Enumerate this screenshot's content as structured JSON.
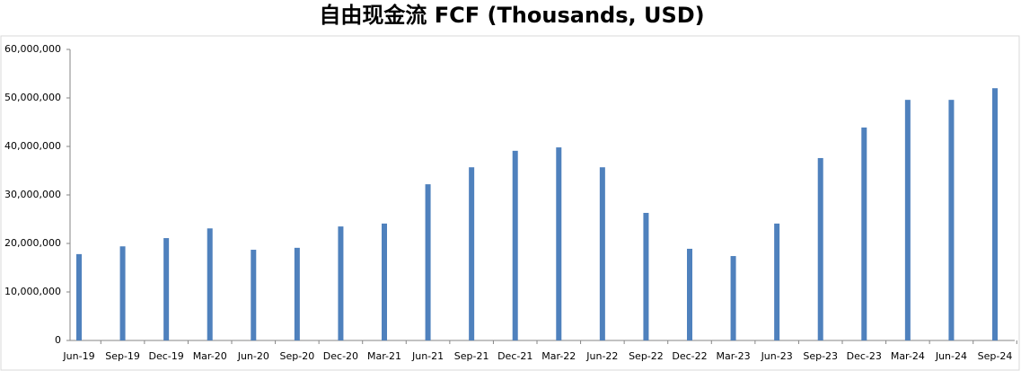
{
  "chart_data": {
    "type": "bar",
    "title": "自由现金流 FCF (Thousands, USD)",
    "categories": [
      "Jun-19",
      "Sep-19",
      "Dec-19",
      "Mar-20",
      "Jun-20",
      "Sep-20",
      "Dec-20",
      "Mar-21",
      "Jun-21",
      "Sep-21",
      "Dec-21",
      "Mar-22",
      "Jun-22",
      "Sep-22",
      "Dec-22",
      "Mar-23",
      "Jun-23",
      "Sep-23",
      "Dec-23",
      "Mar-24",
      "Jun-24",
      "Sep-24"
    ],
    "values": [
      17800000,
      19400000,
      21100000,
      23100000,
      18700000,
      19100000,
      23500000,
      24100000,
      32200000,
      35700000,
      39100000,
      39800000,
      35700000,
      26300000,
      18900000,
      17400000,
      24100000,
      37600000,
      43900000,
      49600000,
      49600000,
      52000000
    ],
    "color": "#4f81bd",
    "ylim": [
      0,
      60000000
    ],
    "yticks": [
      0,
      {
        "value": 10000000,
        "label": "10,000,000"
      },
      {
        "value": 20000000,
        "label": "20,000,000"
      },
      {
        "value": 30000000,
        "label": "30,000,000"
      },
      {
        "value": 40000000,
        "label": "40,000,000"
      },
      {
        "value": 50000000,
        "label": "50,000,000"
      },
      {
        "value": 60000000,
        "label": "60,000,000"
      }
    ],
    "grid": false
  }
}
